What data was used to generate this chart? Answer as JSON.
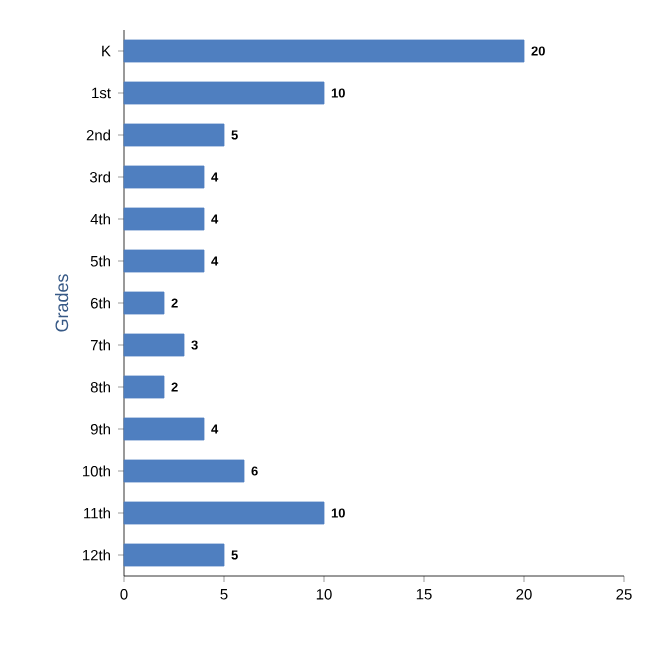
{
  "chart_data": {
    "type": "bar",
    "orientation": "horizontal",
    "ylabel": "Grades",
    "categories": [
      "K",
      "1st",
      "2nd",
      "3rd",
      "4th",
      "5th",
      "6th",
      "7th",
      "8th",
      "9th",
      "10th",
      "11th",
      "12th"
    ],
    "values": [
      20,
      10,
      5,
      4,
      4,
      4,
      2,
      3,
      2,
      4,
      6,
      10,
      5
    ],
    "color": "#4f7fc0",
    "xlim": [
      0,
      25
    ],
    "xticks": [
      0,
      5,
      10,
      15,
      20,
      25
    ],
    "data_labels": true
  }
}
